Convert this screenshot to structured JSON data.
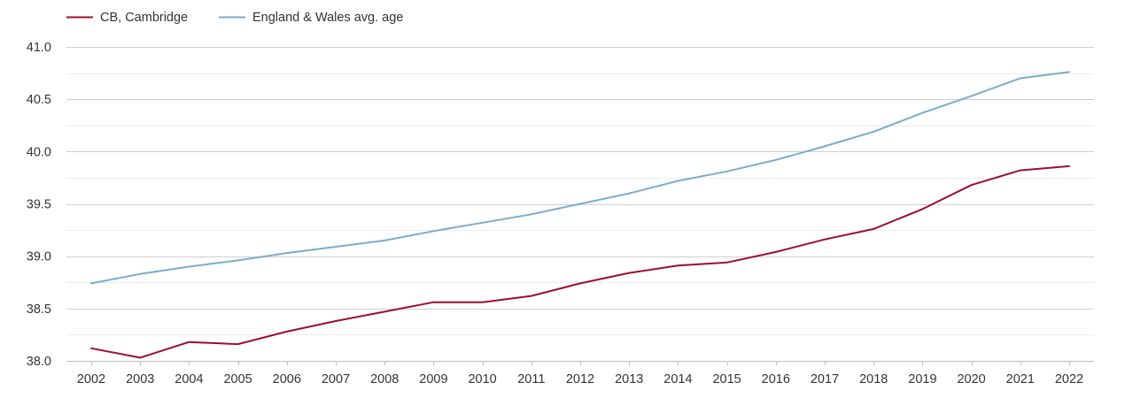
{
  "chart_data": {
    "type": "line",
    "title": "",
    "xlabel": "",
    "ylabel": "",
    "x": [
      2002,
      2003,
      2004,
      2005,
      2006,
      2007,
      2008,
      2009,
      2010,
      2011,
      2012,
      2013,
      2014,
      2015,
      2016,
      2017,
      2018,
      2019,
      2020,
      2021,
      2022
    ],
    "x_tick_labels": [
      "2002",
      "2003",
      "2004",
      "2005",
      "2006",
      "2007",
      "2008",
      "2009",
      "2010",
      "2011",
      "2012",
      "2013",
      "2014",
      "2015",
      "2016",
      "2017",
      "2018",
      "2019",
      "2020",
      "2021",
      "2022"
    ],
    "ylim": [
      38.0,
      41.0
    ],
    "y_ticks": [
      38.0,
      38.5,
      39.0,
      39.5,
      40.0,
      40.5,
      41.0
    ],
    "y_tick_labels": [
      "38.0",
      "38.5",
      "39.0",
      "39.5",
      "40.0",
      "40.5",
      "41.0"
    ],
    "grid": true,
    "legend_position": "top-left",
    "series": [
      {
        "name": "CB, Cambridge",
        "color": "#9b0e2e",
        "values": [
          38.12,
          38.03,
          38.18,
          38.16,
          38.28,
          38.38,
          38.47,
          38.56,
          38.56,
          38.62,
          38.74,
          38.84,
          38.91,
          38.94,
          39.04,
          39.16,
          39.26,
          39.45,
          39.68,
          39.82,
          39.86
        ]
      },
      {
        "name": "England & Wales avg. age",
        "color": "#7aaccc",
        "values": [
          38.74,
          38.83,
          38.9,
          38.96,
          39.03,
          39.09,
          39.15,
          39.24,
          39.32,
          39.4,
          39.5,
          39.6,
          39.72,
          39.81,
          39.92,
          40.05,
          40.19,
          40.37,
          40.53,
          40.7,
          40.76
        ]
      }
    ]
  }
}
